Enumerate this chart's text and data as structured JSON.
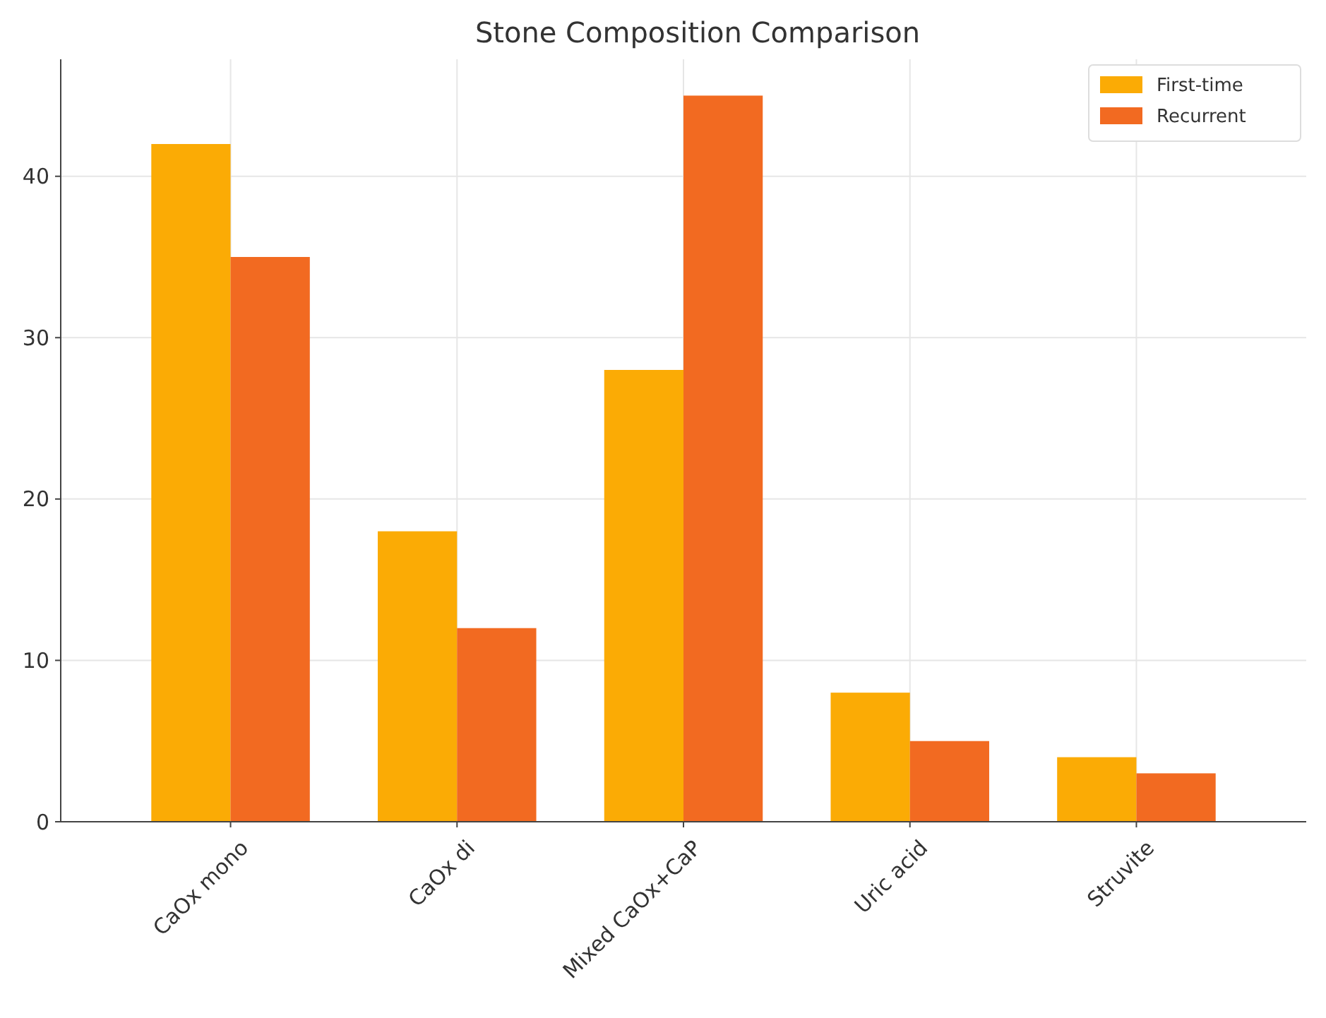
{
  "chart_data": {
    "type": "bar",
    "title": "Stone Composition Comparison",
    "categories": [
      "CaOx mono",
      "CaOx di",
      "Mixed CaOx+CaP",
      "Uric acid",
      "Struvite"
    ],
    "series": [
      {
        "name": "First-time",
        "color": "#fbab05",
        "values": [
          42,
          18,
          28,
          8,
          4
        ]
      },
      {
        "name": "Recurrent",
        "color": "#f26a21",
        "values": [
          35,
          12,
          45,
          5,
          3
        ]
      }
    ],
    "ylim": [
      0,
      47.25
    ],
    "yticks": [
      0,
      10,
      20,
      30,
      40
    ],
    "grid": true,
    "legend": "top right"
  }
}
